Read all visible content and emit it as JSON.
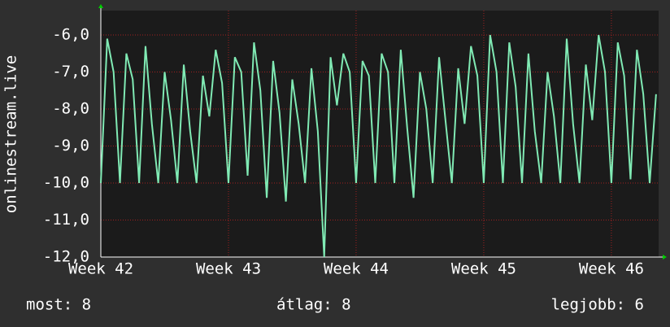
{
  "chart_data": {
    "type": "line",
    "y_label": "onlinestream.live",
    "x": [
      42,
      42.05,
      42.1,
      42.15,
      42.2,
      42.25,
      42.3,
      42.35,
      42.4,
      42.45,
      42.5,
      42.55,
      42.6,
      42.65,
      42.7,
      42.75,
      42.8,
      42.85,
      42.9,
      42.95,
      43,
      43.05,
      43.1,
      43.15,
      43.2,
      43.25,
      43.3,
      43.35,
      43.4,
      43.45,
      43.5,
      43.55,
      43.6,
      43.65,
      43.7,
      43.75,
      43.8,
      43.85,
      43.9,
      43.95,
      44,
      44.05,
      44.1,
      44.15,
      44.2,
      44.25,
      44.3,
      44.35,
      44.4,
      44.45,
      44.5,
      44.55,
      44.6,
      44.65,
      44.7,
      44.75,
      44.8,
      44.85,
      44.9,
      44.95,
      45,
      45.05,
      45.1,
      45.15,
      45.2,
      45.25,
      45.3,
      45.35,
      45.4,
      45.45,
      45.5,
      45.55,
      45.6,
      45.65,
      45.7,
      45.75,
      45.8,
      45.85,
      45.9,
      45.95,
      46,
      46.05,
      46.1,
      46.15,
      46.2,
      46.25,
      46.3,
      46.35
    ],
    "series": [
      {
        "name": "onlinestream.live",
        "color": "#80eab4",
        "values": [
          -10,
          -6.1,
          -7,
          -10,
          -6.5,
          -7.2,
          -10,
          -6.3,
          -8.4,
          -10,
          -7,
          -8.3,
          -10,
          -6.8,
          -8.6,
          -10,
          -7.1,
          -8.2,
          -6.4,
          -7.3,
          -10,
          -6.6,
          -7,
          -9.8,
          -6.2,
          -7.5,
          -10.4,
          -6.7,
          -8.1,
          -10.5,
          -7.2,
          -8.4,
          -10,
          -6.9,
          -8.6,
          -12,
          -6.6,
          -7.9,
          -6.5,
          -7,
          -10,
          -6.7,
          -7.1,
          -10,
          -6.5,
          -7,
          -10,
          -6.4,
          -8.5,
          -10.4,
          -7,
          -8,
          -10,
          -6.6,
          -8.3,
          -10,
          -6.9,
          -8.4,
          -6.3,
          -7.1,
          -10,
          -6,
          -7,
          -10,
          -6.2,
          -7.4,
          -10,
          -6.5,
          -8.6,
          -10,
          -7,
          -8.2,
          -10,
          -6.1,
          -8.4,
          -10,
          -6.8,
          -8.3,
          -6,
          -7,
          -10,
          -6.2,
          -7.1,
          -9.9,
          -6.4,
          -7.6,
          -10,
          -7.6
        ]
      }
    ],
    "xlim": [
      42,
      46.37
    ],
    "xticks": [
      {
        "value": 42,
        "label": "Week 42"
      },
      {
        "value": 43,
        "label": "Week 43"
      },
      {
        "value": 44,
        "label": "Week 44"
      },
      {
        "value": 45,
        "label": "Week 45"
      },
      {
        "value": 46,
        "label": "Week 46"
      }
    ],
    "ylim": [
      -12,
      -5.34
    ],
    "yticks": [
      {
        "value": -12,
        "label": "-12,0"
      },
      {
        "value": -11,
        "label": "-11,0"
      },
      {
        "value": -10,
        "label": "-10,0"
      },
      {
        "value": -9,
        "label": "-9,0"
      },
      {
        "value": -8,
        "label": "-8,0"
      },
      {
        "value": -7,
        "label": "-7,0"
      },
      {
        "value": -6,
        "label": "-6,0"
      }
    ],
    "grid": true,
    "footer": [
      "most: 8",
      "átlag: 8",
      "legjobb: 6"
    ]
  }
}
